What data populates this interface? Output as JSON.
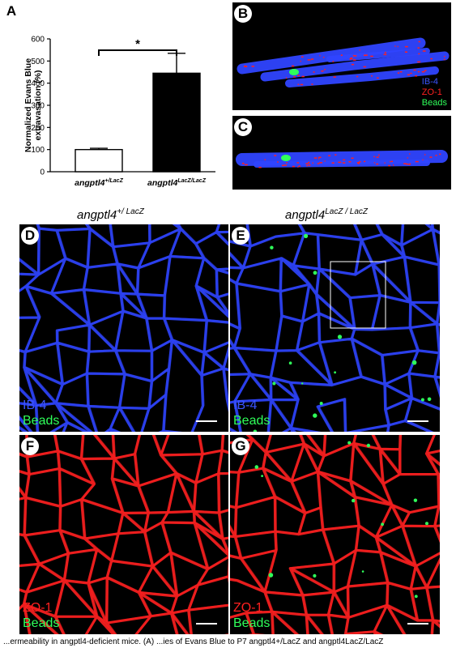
{
  "panels": {
    "A": {
      "letter": "A"
    },
    "B": {
      "letter": "B",
      "legend": [
        "IB-4",
        "ZO-1",
        "Beads"
      ]
    },
    "C": {
      "letter": "C"
    },
    "D": {
      "letter": "D",
      "legend": [
        "IB-4",
        "Beads"
      ]
    },
    "E": {
      "letter": "E",
      "legend": [
        "IB-4",
        "Beads"
      ]
    },
    "F": {
      "letter": "F",
      "legend": [
        "ZO-1",
        "Beads"
      ]
    },
    "G": {
      "letter": "G",
      "legend": [
        "ZO-1",
        "Beads"
      ]
    }
  },
  "genotype_headers": {
    "left": {
      "gene": "angptl4",
      "allele": "+/ LacZ"
    },
    "right": {
      "gene": "angptl4",
      "allele": "LacZ / LacZ"
    }
  },
  "colors": {
    "ib4": "#2f45ff",
    "zo1": "#ff2020",
    "beads": "#2fff5a",
    "bar_mutant": "#000000",
    "bar_control": "#ffffff"
  },
  "chart_data": {
    "type": "bar",
    "categories": [
      "angptl4+/LacZ",
      "angptl4LacZ/LacZ"
    ],
    "category_parts": [
      {
        "gene": "angptl4",
        "allele": "+/LacZ"
      },
      {
        "gene": "angptl4",
        "allele": "LacZ/LacZ"
      }
    ],
    "values": [
      100,
      445
    ],
    "errors": [
      6,
      90
    ],
    "ylabel": "Normalized Evans Blue extravasation (%)",
    "ylabel_lines": [
      "Normalized Evans Blue",
      "extravasation (%)"
    ],
    "ylim": [
      0,
      600
    ],
    "yticks": [
      0,
      100,
      200,
      300,
      400,
      500,
      600
    ],
    "significance": "*",
    "grid": false
  },
  "caption": "...ermeability in angptl4-deficient mice.  (A) ...ies of Evans Blue to P7 angptl4+/LacZ and angptl4LacZ/LacZ"
}
